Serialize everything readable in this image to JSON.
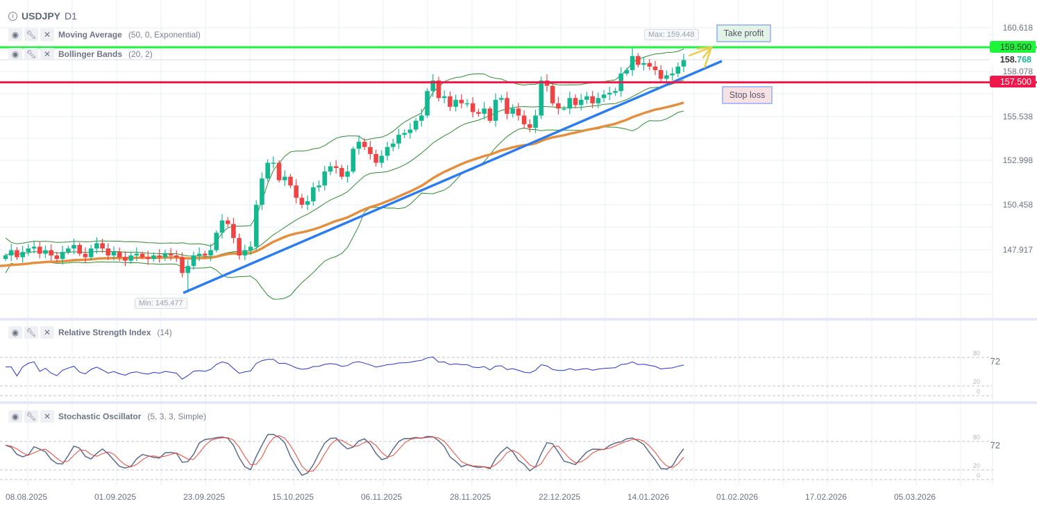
{
  "header": {
    "symbol": "USDJPY",
    "timeframe": "D1"
  },
  "indicators": {
    "ma": {
      "name": "Moving Average",
      "params": "(50, 0, Exponential)"
    },
    "bb": {
      "name": "Bollinger Bands",
      "params": "(20, 2)"
    },
    "rsi": {
      "name": "Relative Strength Index",
      "params": "(14)",
      "value": "72",
      "levels": [
        "80",
        "20",
        "0"
      ]
    },
    "stoch": {
      "name": "Stochastic Oscillator",
      "params": "(5, 3, 3, Simple)",
      "value": "72",
      "levels": [
        "80",
        "20",
        "0"
      ]
    }
  },
  "price_axis": [
    "160.618",
    "158.078",
    "155.538",
    "152.998",
    "150.458",
    "147.917"
  ],
  "current_price": {
    "main": "158.",
    "accent": "768"
  },
  "levels": {
    "take_profit": {
      "price": "159.500",
      "label": "Take profit",
      "color": "#1ef53a"
    },
    "stop_loss": {
      "price": "157.500",
      "label": "Stop loss",
      "color": "#f0184a"
    }
  },
  "markers": {
    "max": "Max: 159.448",
    "min": "Min: 145.477"
  },
  "time_axis": [
    "08.08.2025",
    "01.09.2025",
    "23.09.2025",
    "15.10.2025",
    "06.11.2025",
    "28.11.2025",
    "22.12.2025",
    "14.01.2026",
    "01.02.2026",
    "17.02.2026",
    "05.03.2026"
  ],
  "icons": {
    "visibility": "eye-icon",
    "settings": "wrench-icon",
    "remove": "close-icon",
    "info": "info-icon"
  },
  "colors": {
    "up": "#14b890",
    "down": "#ef4444",
    "ema": "#e58f3e",
    "bollinger": "#2e8b2e",
    "trendline": "#2b7cf0",
    "rsi": "#2233cc",
    "stoch_k": "#5a6a8a",
    "stoch_d": "#ee4433"
  },
  "chart_data": {
    "type": "candlestick",
    "first_open": 147.4,
    "close": [
      147.6,
      147.9,
      147.5,
      147.8,
      148.0,
      148.1,
      147.7,
      147.9,
      147.6,
      147.4,
      147.8,
      148.0,
      148.2,
      147.7,
      147.5,
      148.0,
      148.3,
      148.0,
      147.6,
      147.8,
      147.5,
      147.3,
      147.6,
      147.7,
      147.5,
      147.4,
      147.6,
      147.5,
      147.7,
      147.6,
      147.5,
      146.6,
      147.0,
      147.6,
      147.7,
      147.6,
      147.9,
      148.9,
      149.6,
      149.4,
      148.6,
      147.6,
      147.9,
      148.1,
      150.5,
      152.0,
      152.9,
      152.9,
      151.9,
      152.1,
      151.6,
      150.9,
      150.5,
      150.7,
      151.5,
      151.6,
      152.4,
      152.7,
      152.6,
      152.1,
      152.4,
      153.7,
      154.1,
      153.8,
      153.4,
      152.9,
      153.3,
      153.8,
      154.0,
      154.5,
      154.6,
      154.8,
      155.3,
      155.6,
      157.0,
      157.6,
      156.6,
      156.7,
      156.1,
      156.5,
      156.3,
      156.3,
      155.8,
      155.7,
      156.0,
      155.3,
      156.5,
      156.6,
      155.7,
      156.0,
      155.6,
      155.1,
      154.9,
      155.6,
      157.6,
      157.3,
      156.3,
      156.0,
      156.0,
      156.6,
      156.2,
      156.5,
      156.7,
      156.3,
      156.6,
      156.8,
      156.9,
      157.0,
      158.0,
      158.2,
      159.0,
      158.5,
      158.6,
      158.4,
      158.2,
      157.7,
      157.9,
      158.0,
      158.4,
      158.768
    ],
    "min": 145.477,
    "max": 159.448,
    "ylim": [
      144.5,
      161.5
    ]
  }
}
